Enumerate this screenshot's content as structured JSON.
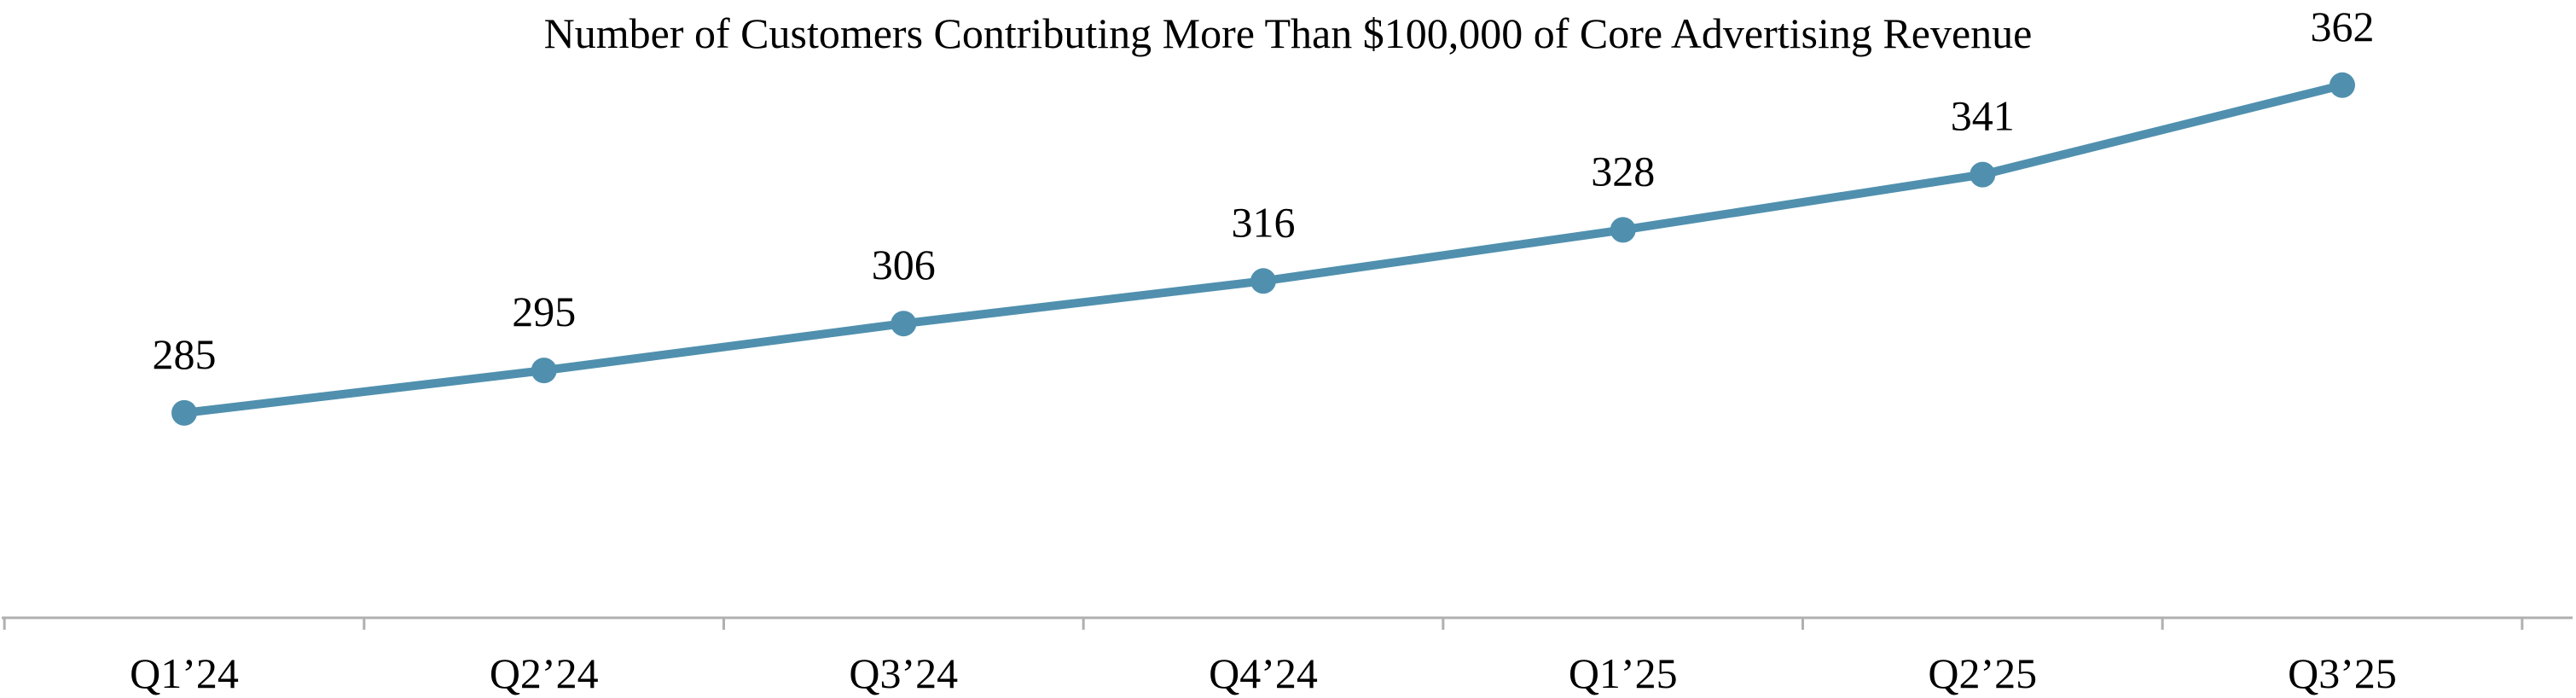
{
  "chart_data": {
    "type": "line",
    "title": "Number of Customers Contributing More Than $100,000 of Core Advertising Revenue",
    "xlabel": "",
    "ylabel": "",
    "categories": [
      "Q1’24",
      "Q2’24",
      "Q3’24",
      "Q4’24",
      "Q1’25",
      "Q2’25",
      "Q3’25"
    ],
    "series": [
      {
        "values": [
          285,
          295,
          306,
          316,
          328,
          341,
          362
        ]
      }
    ],
    "data_labels": [
      "285",
      "295",
      "306",
      "316",
      "328",
      "341",
      "362"
    ],
    "ylim": [
      200,
      380
    ],
    "grid": false,
    "legend": "none",
    "colors": {
      "line": "#5090ae",
      "marker": "#5090ae",
      "axis": "#b0b0b0",
      "text": "#000000"
    }
  }
}
